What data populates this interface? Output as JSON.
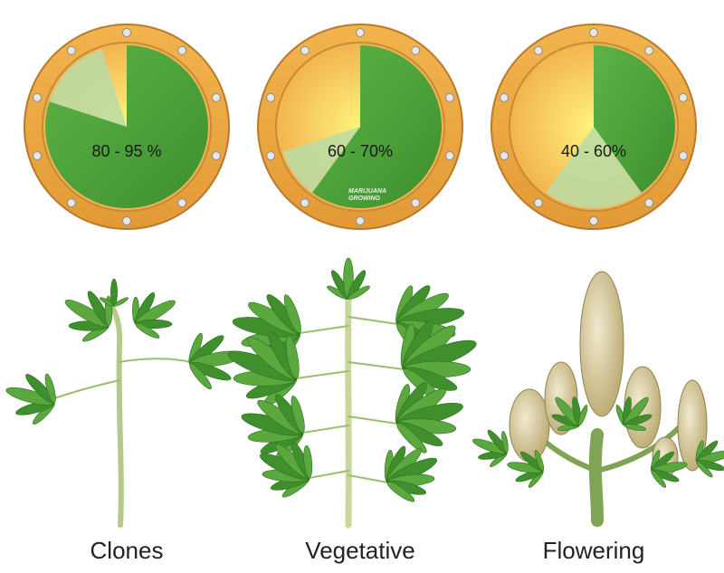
{
  "panels": [
    {
      "range_label": "80 - 95 %",
      "range": [
        80,
        95
      ],
      "stage": "Clones"
    },
    {
      "range_label": "60 - 70%",
      "range": [
        60,
        70
      ],
      "stage": "Vegetative"
    },
    {
      "range_label": "40 - 60%",
      "range": [
        40,
        60
      ],
      "stage": "Flowering"
    }
  ],
  "watermark": [
    "MARIJUANA",
    "GROWING"
  ]
}
